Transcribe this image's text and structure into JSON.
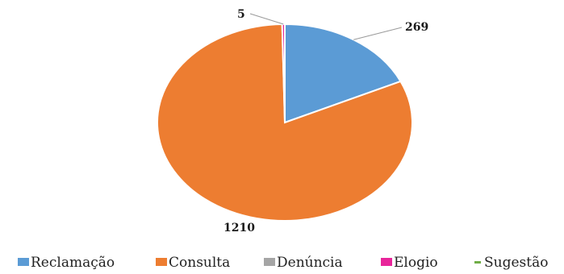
{
  "chart_data": {
    "type": "pie",
    "title": "",
    "categories": [
      "Reclamação",
      "Consulta",
      "Denúncia",
      "Elogio",
      "Sugestão"
    ],
    "values": [
      269,
      1210,
      0,
      5,
      0
    ],
    "data_labels": [
      "269",
      "1210",
      "",
      "5",
      ""
    ],
    "colors": [
      "#5b9bd5",
      "#ed7d31",
      "#a5a5a5",
      "#e8259a",
      "#70ad47"
    ],
    "legend": {
      "position": "bottom",
      "items": [
        "Reclamação",
        "Consulta",
        "Denúncia",
        "Elogio",
        "Sugestão"
      ]
    }
  }
}
